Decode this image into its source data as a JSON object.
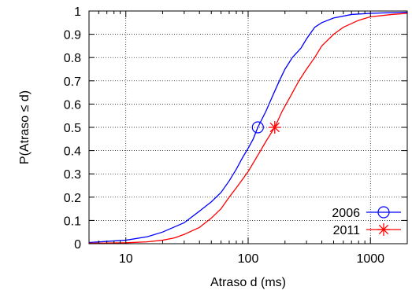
{
  "chart_data": {
    "type": "line",
    "xlabel": "Atraso d (ms)",
    "ylabel": "P(Atraso ≤ d)",
    "x_scale": "log",
    "xlim": [
      5,
      2000
    ],
    "ylim": [
      0,
      1
    ],
    "x_ticks": [
      {
        "value": 10,
        "label": "10"
      },
      {
        "value": 100,
        "label": "100"
      },
      {
        "value": 1000,
        "label": "1000"
      }
    ],
    "y_ticks": [
      {
        "value": 0,
        "label": "0"
      },
      {
        "value": 0.1,
        "label": "0.1"
      },
      {
        "value": 0.2,
        "label": "0.2"
      },
      {
        "value": 0.3,
        "label": "0.3"
      },
      {
        "value": 0.4,
        "label": "0.4"
      },
      {
        "value": 0.5,
        "label": "0.5"
      },
      {
        "value": 0.6,
        "label": "0.6"
      },
      {
        "value": 0.7,
        "label": "0.7"
      },
      {
        "value": 0.8,
        "label": "0.8"
      },
      {
        "value": 0.9,
        "label": "0.9"
      },
      {
        "value": 1,
        "label": "1"
      }
    ],
    "grid": true,
    "legend_position": "bottom-right",
    "series": [
      {
        "name": "2006",
        "color": "#0000ff",
        "marker": "circle",
        "median_point": {
          "x": 120,
          "y": 0.5
        },
        "points": [
          {
            "x": 5,
            "y": 0.005
          },
          {
            "x": 7,
            "y": 0.01
          },
          {
            "x": 10,
            "y": 0.015
          },
          {
            "x": 15,
            "y": 0.03
          },
          {
            "x": 20,
            "y": 0.05
          },
          {
            "x": 30,
            "y": 0.09
          },
          {
            "x": 40,
            "y": 0.14
          },
          {
            "x": 50,
            "y": 0.18
          },
          {
            "x": 60,
            "y": 0.22
          },
          {
            "x": 70,
            "y": 0.27
          },
          {
            "x": 80,
            "y": 0.32
          },
          {
            "x": 90,
            "y": 0.37
          },
          {
            "x": 100,
            "y": 0.41
          },
          {
            "x": 110,
            "y": 0.45
          },
          {
            "x": 120,
            "y": 0.5
          },
          {
            "x": 140,
            "y": 0.57
          },
          {
            "x": 160,
            "y": 0.64
          },
          {
            "x": 180,
            "y": 0.7
          },
          {
            "x": 200,
            "y": 0.75
          },
          {
            "x": 230,
            "y": 0.8
          },
          {
            "x": 270,
            "y": 0.84
          },
          {
            "x": 300,
            "y": 0.88
          },
          {
            "x": 350,
            "y": 0.93
          },
          {
            "x": 400,
            "y": 0.95
          },
          {
            "x": 500,
            "y": 0.97
          },
          {
            "x": 700,
            "y": 0.985
          },
          {
            "x": 1000,
            "y": 0.99
          },
          {
            "x": 2000,
            "y": 0.995
          }
        ]
      },
      {
        "name": "2011",
        "color": "#ff0000",
        "marker": "star",
        "median_point": {
          "x": 165,
          "y": 0.5
        },
        "points": [
          {
            "x": 5,
            "y": 0.002
          },
          {
            "x": 10,
            "y": 0.004
          },
          {
            "x": 15,
            "y": 0.008
          },
          {
            "x": 20,
            "y": 0.015
          },
          {
            "x": 25,
            "y": 0.025
          },
          {
            "x": 30,
            "y": 0.04
          },
          {
            "x": 40,
            "y": 0.07
          },
          {
            "x": 50,
            "y": 0.11
          },
          {
            "x": 60,
            "y": 0.15
          },
          {
            "x": 70,
            "y": 0.2
          },
          {
            "x": 80,
            "y": 0.24
          },
          {
            "x": 100,
            "y": 0.31
          },
          {
            "x": 120,
            "y": 0.38
          },
          {
            "x": 140,
            "y": 0.44
          },
          {
            "x": 165,
            "y": 0.5
          },
          {
            "x": 190,
            "y": 0.57
          },
          {
            "x": 220,
            "y": 0.63
          },
          {
            "x": 260,
            "y": 0.7
          },
          {
            "x": 300,
            "y": 0.75
          },
          {
            "x": 350,
            "y": 0.8
          },
          {
            "x": 400,
            "y": 0.85
          },
          {
            "x": 500,
            "y": 0.9
          },
          {
            "x": 600,
            "y": 0.93
          },
          {
            "x": 800,
            "y": 0.96
          },
          {
            "x": 1000,
            "y": 0.975
          },
          {
            "x": 1500,
            "y": 0.985
          },
          {
            "x": 2000,
            "y": 0.99
          }
        ]
      }
    ]
  }
}
